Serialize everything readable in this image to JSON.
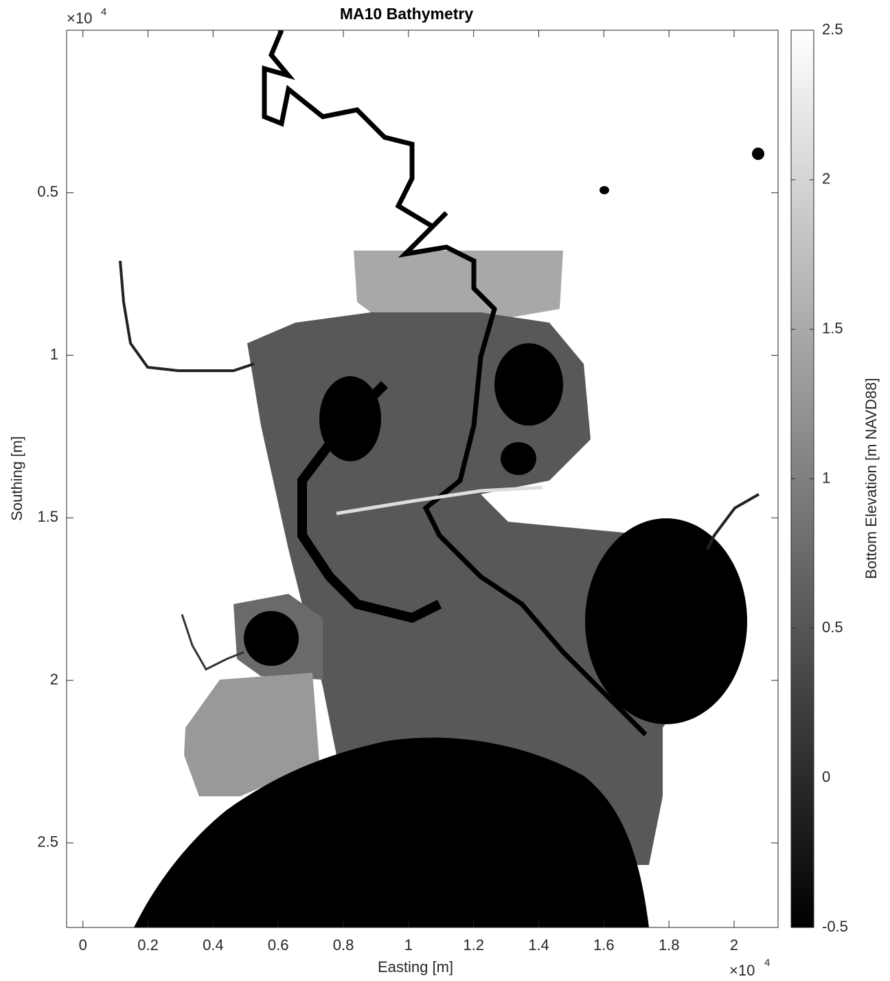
{
  "chart_data": {
    "type": "image",
    "title": "MA10 Bathymetry",
    "xlabel": "Easting [m]",
    "ylabel": "Southing [m]",
    "xlim": [
      -0.05,
      2.135
    ],
    "xticks": [
      0,
      0.2,
      0.4,
      0.6,
      0.8,
      1,
      1.2,
      1.4,
      1.6,
      1.8,
      2
    ],
    "ylim": [
      0,
      2.76
    ],
    "yticks": [
      0.5,
      1,
      1.5,
      2,
      2.5
    ],
    "y_reversed": true,
    "x_multiplier": {
      "base": "×10",
      "exponent": 4
    },
    "y_multiplier": {
      "base": "×10",
      "exponent": 4
    },
    "colormap": "gray",
    "colorbar": {
      "label": "Bottom Elevation [m NAVD88]",
      "clim": [
        -0.5,
        2.5
      ],
      "ticks": [
        -0.5,
        0,
        0.5,
        1,
        1.5,
        2,
        2.5
      ]
    }
  }
}
